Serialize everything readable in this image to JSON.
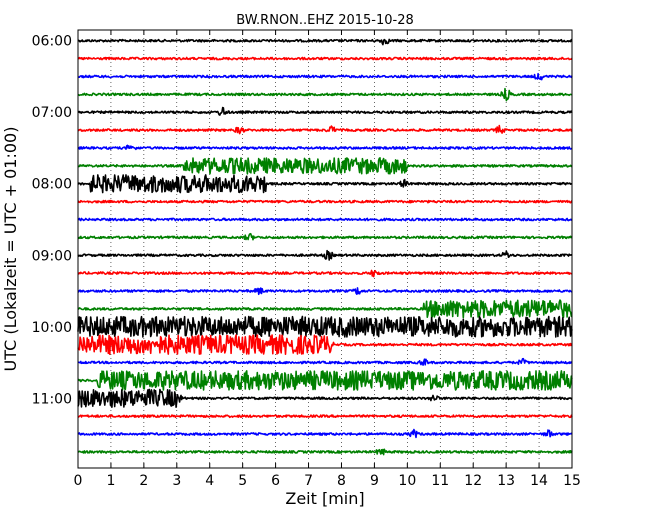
{
  "chart_data": {
    "type": "line",
    "title": "BW.RNON..EHZ 2015-10-28",
    "xlabel": "Zeit  [min]",
    "ylabel": "UTC (Lokalzeit = UTC + 01:00)",
    "xlim": [
      0,
      15
    ],
    "x_ticks": [
      "0",
      "1",
      "2",
      "3",
      "4",
      "5",
      "6",
      "7",
      "8",
      "9",
      "10",
      "11",
      "12",
      "13",
      "14",
      "15"
    ],
    "y_ticks": [
      "06:00",
      "07:00",
      "08:00",
      "09:00",
      "10:00",
      "11:00"
    ],
    "grid": "vertical dotted",
    "color_cycle": [
      "#000000",
      "#ff0000",
      "#0000ff",
      "#008000"
    ],
    "traces": [
      {
        "start": "06:00",
        "color": "#000000",
        "events": [
          {
            "t": 9.3,
            "amp": 1.7
          }
        ]
      },
      {
        "start": "06:15",
        "color": "#ff0000",
        "events": []
      },
      {
        "start": "06:30",
        "color": "#0000ff",
        "events": [
          {
            "t": 14.0,
            "amp": 1.5
          }
        ]
      },
      {
        "start": "06:45",
        "color": "#008000",
        "events": [
          {
            "t": 13.0,
            "amp": 2.5
          }
        ]
      },
      {
        "start": "07:00",
        "color": "#000000",
        "events": [
          {
            "t": 4.4,
            "amp": 2.0
          }
        ]
      },
      {
        "start": "07:15",
        "color": "#ff0000",
        "events": [
          {
            "t": 4.9,
            "amp": 1.4
          },
          {
            "t": 7.7,
            "amp": 1.5
          },
          {
            "t": 12.8,
            "amp": 1.6
          }
        ]
      },
      {
        "start": "07:30",
        "color": "#0000ff",
        "events": [
          {
            "t": 1.6,
            "amp": 1.5
          }
        ]
      },
      {
        "start": "07:45",
        "color": "#008000",
        "bursts": [
          {
            "from": 3.2,
            "to": 10.0,
            "amp": 2.5
          }
        ],
        "events": []
      },
      {
        "start": "08:00",
        "color": "#000000",
        "bursts": [
          {
            "from": 0.35,
            "to": 5.7,
            "amp": 2.8
          }
        ],
        "events": [
          {
            "t": 9.9,
            "amp": 1.5
          }
        ]
      },
      {
        "start": "08:15",
        "color": "#ff0000",
        "events": []
      },
      {
        "start": "08:30",
        "color": "#0000ff",
        "events": []
      },
      {
        "start": "08:45",
        "color": "#008000",
        "events": [
          {
            "t": 5.2,
            "amp": 1.5
          }
        ]
      },
      {
        "start": "09:00",
        "color": "#000000",
        "events": [
          {
            "t": 7.6,
            "amp": 2.0
          },
          {
            "t": 13.0,
            "amp": 1.5
          }
        ]
      },
      {
        "start": "09:15",
        "color": "#ff0000",
        "events": [
          {
            "t": 9.0,
            "amp": 1.4
          }
        ]
      },
      {
        "start": "09:30",
        "color": "#0000ff",
        "events": [
          {
            "t": 5.5,
            "amp": 1.4
          },
          {
            "t": 8.5,
            "amp": 1.4
          }
        ]
      },
      {
        "start": "09:45",
        "color": "#008000",
        "bursts": [
          {
            "from": 10.5,
            "to": 15.0,
            "amp": 2.8
          }
        ],
        "events": []
      },
      {
        "start": "10:00",
        "color": "#000000",
        "bursts": [
          {
            "from": 0.0,
            "to": 15.0,
            "amp": 3.2
          }
        ],
        "events": []
      },
      {
        "start": "10:15",
        "color": "#ff0000",
        "bursts": [
          {
            "from": 0.0,
            "to": 7.6,
            "amp": 3.0
          }
        ],
        "events": [
          {
            "t": 7.6,
            "amp": 4.0
          }
        ]
      },
      {
        "start": "10:30",
        "color": "#0000ff",
        "events": [
          {
            "t": 10.5,
            "amp": 1.4
          },
          {
            "t": 13.5,
            "amp": 1.3
          }
        ]
      },
      {
        "start": "10:45",
        "color": "#008000",
        "bursts": [
          {
            "from": 0.6,
            "to": 15.0,
            "amp": 3.0
          }
        ],
        "events": []
      },
      {
        "start": "11:00",
        "color": "#000000",
        "bursts": [
          {
            "from": 0.0,
            "to": 3.0,
            "amp": 2.8
          }
        ],
        "events": [
          {
            "t": 3.0,
            "amp": 3.2
          },
          {
            "t": 10.8,
            "amp": 1.4
          }
        ]
      },
      {
        "start": "11:15",
        "color": "#ff0000",
        "events": []
      },
      {
        "start": "11:30",
        "color": "#0000ff",
        "events": [
          {
            "t": 10.2,
            "amp": 1.6
          },
          {
            "t": 14.3,
            "amp": 1.5
          }
        ]
      },
      {
        "start": "11:45",
        "color": "#008000",
        "events": [
          {
            "t": 9.2,
            "amp": 1.5
          }
        ]
      }
    ]
  }
}
